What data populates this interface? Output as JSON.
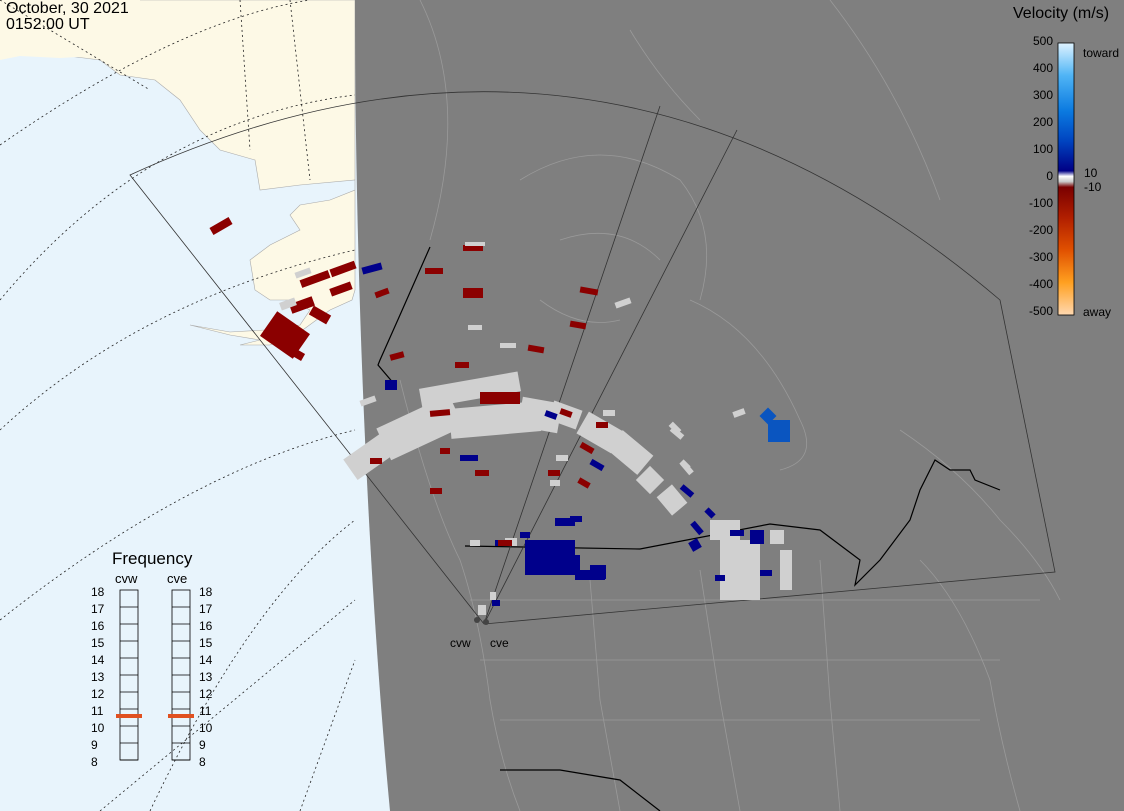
{
  "header": {
    "date": "October, 30 2021",
    "time": "0152:00 UT"
  },
  "colorbar": {
    "title": "Velocity (m/s)",
    "ticks": [
      "500",
      "400",
      "300",
      "200",
      "100",
      "0",
      "-100",
      "-200",
      "-300",
      "-400",
      "-500"
    ],
    "inner_ticks": [
      "10",
      "-10"
    ],
    "toward_label": "toward",
    "away_label": "away"
  },
  "frequency": {
    "title": "Frequency",
    "radars": [
      {
        "name": "cvw",
        "value_mhz": 10.6
      },
      {
        "name": "cve",
        "value_mhz": 10.6
      }
    ],
    "scale": [
      "18",
      "17",
      "16",
      "15",
      "14",
      "13",
      "12",
      "11",
      "10",
      "9",
      "8"
    ]
  },
  "sites": [
    {
      "name": "cvw"
    },
    {
      "name": "cve"
    }
  ],
  "colors": {
    "ocean": "#e8f4fc",
    "land_ak": "#fdf9e6",
    "night": "#808080",
    "positive": "#00008b",
    "negative": "#8b0000",
    "ground_scatter": "#d0d0d0"
  }
}
